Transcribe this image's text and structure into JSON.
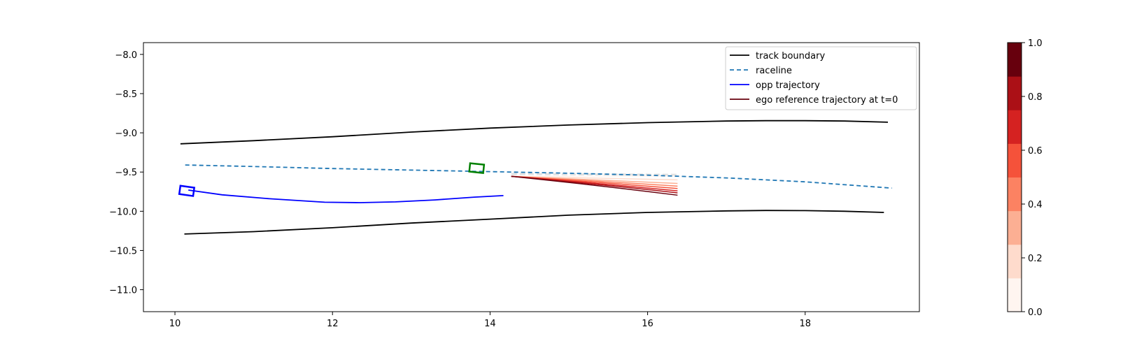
{
  "chart_data": {
    "type": "line",
    "title": "",
    "xlabel": "",
    "ylabel": "",
    "xlim": [
      9.6,
      19.45
    ],
    "ylim": [
      -11.28,
      -7.85
    ],
    "xticks": [
      10,
      12,
      14,
      16,
      18
    ],
    "yticks": [
      -8.0,
      -8.5,
      -9.0,
      -9.5,
      -10.0,
      -10.5,
      -11.0
    ],
    "xtick_labels": [
      "10",
      "12",
      "14",
      "16",
      "18"
    ],
    "ytick_labels": [
      "−8.0",
      "−8.5",
      "−9.0",
      "−9.5",
      "−10.0",
      "−10.5",
      "−11.0"
    ],
    "grid": false,
    "legend_position": "top-right",
    "legend": [
      {
        "label": "track boundary",
        "color": "#000000",
        "style": "solid"
      },
      {
        "label": "raceline",
        "color": "#1f77b4",
        "style": "dashed"
      },
      {
        "label": "opp trajectory",
        "color": "#0000ff",
        "style": "solid"
      },
      {
        "label": "ego reference trajectory at t=0",
        "color": "#67000d",
        "style": "solid"
      }
    ],
    "series": [
      {
        "name": "track boundary",
        "color": "#000000",
        "x": [
          10.07,
          11.0,
          12.0,
          13.0,
          14.0,
          15.0,
          16.0,
          17.0,
          17.5,
          18.0,
          18.5,
          19.05
        ],
        "y": [
          -9.14,
          -9.1,
          -9.05,
          -8.99,
          -8.94,
          -8.9,
          -8.87,
          -8.85,
          -8.845,
          -8.845,
          -8.85,
          -8.865
        ]
      },
      {
        "color": "#000000",
        "x": [
          10.12,
          11.0,
          12.0,
          13.0,
          14.0,
          15.0,
          16.0,
          17.0,
          17.5,
          18.0,
          18.5,
          19.0
        ],
        "y": [
          -10.29,
          -10.26,
          -10.21,
          -10.15,
          -10.1,
          -10.05,
          -10.015,
          -9.995,
          -9.99,
          -9.992,
          -10.0,
          -10.015
        ]
      },
      {
        "name": "raceline",
        "color": "#1f77b4",
        "x": [
          10.13,
          11.0,
          12.0,
          13.0,
          14.0,
          15.0,
          16.0,
          17.0,
          18.0,
          19.1
        ],
        "y": [
          -9.41,
          -9.43,
          -9.455,
          -9.475,
          -9.495,
          -9.515,
          -9.54,
          -9.575,
          -9.625,
          -9.705
        ]
      },
      {
        "name": "opp trajectory",
        "color": "#0000ff",
        "x": [
          10.17,
          10.6,
          11.2,
          11.9,
          12.35,
          12.8,
          13.3,
          13.8,
          14.17
        ],
        "y": [
          -9.73,
          -9.79,
          -9.84,
          -9.885,
          -9.89,
          -9.88,
          -9.855,
          -9.82,
          -9.8
        ]
      }
    ],
    "ego_predictions": {
      "x_start": 14.27,
      "x_end": 16.38,
      "y_start": -9.555,
      "y_ends": [
        -9.55,
        -9.6,
        -9.645,
        -9.68,
        -9.71,
        -9.74,
        -9.765,
        -9.795
      ],
      "t": [
        0.0,
        0.14,
        0.29,
        0.43,
        0.57,
        0.71,
        0.86,
        1.0
      ]
    },
    "opp_vehicle": {
      "x": 10.15,
      "y": -9.74,
      "color": "#0000ff"
    },
    "ego_vehicle": {
      "x": 13.83,
      "y": -9.45,
      "color": "#008000"
    },
    "colorbar": {
      "colormap": "Reds",
      "range": [
        0.0,
        1.0
      ],
      "tick_labels": [
        "0.0",
        "0.2",
        "0.4",
        "0.6",
        "0.8",
        "1.0"
      ],
      "bin_colors": [
        "#fff5f0",
        "#fedbcc",
        "#fcaf93",
        "#fc8262",
        "#f5523a",
        "#d52221",
        "#ab1016",
        "#67000d"
      ]
    }
  }
}
